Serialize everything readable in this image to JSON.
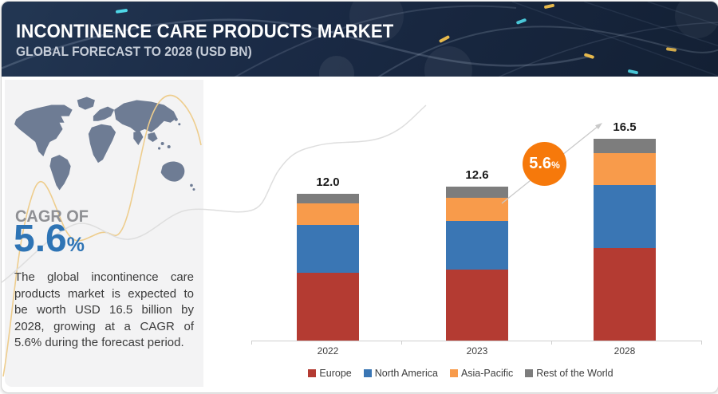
{
  "header": {
    "title": "INCONTINENCE CARE PRODUCTS MARKET",
    "subtitle": "GLOBAL FORECAST TO 2028 (USD BN)"
  },
  "left_panel": {
    "cagr_label": "CAGR OF",
    "cagr_value": "5.6",
    "cagr_unit": "%",
    "description": "The global incontinence care products market is expected to be worth USD 16.5 billion by 2028, growing at a CAGR of 5.6% during the forecast period."
  },
  "annotation_badge": {
    "value": "5.6",
    "unit": "%"
  },
  "chart_data": {
    "type": "bar",
    "stacked": true,
    "categories": [
      "2022",
      "2023",
      "2028"
    ],
    "series": [
      {
        "name": "Europe",
        "color": "#b43b32",
        "values": [
          5.55,
          5.8,
          7.55
        ]
      },
      {
        "name": "North America",
        "color": "#3a76b4",
        "values": [
          3.9,
          4.0,
          5.15
        ]
      },
      {
        "name": "Asia-Pacific",
        "color": "#f89b4b",
        "values": [
          1.75,
          1.9,
          2.6
        ]
      },
      {
        "name": "Rest of the World",
        "color": "#7d7d7d",
        "values": [
          0.8,
          0.9,
          1.2
        ]
      }
    ],
    "totals": [
      12.0,
      12.6,
      16.5
    ],
    "total_labels": [
      "12.0",
      "12.6",
      "16.5"
    ],
    "growth_annotation": "5.6%",
    "unit": "USD BN",
    "legend_position": "bottom",
    "ylim": [
      0,
      18
    ],
    "grid": false
  },
  "colors": {
    "header_bg": "#1a2a45",
    "panel_bg": "#f3f3f4",
    "map": "#6e7c94",
    "cagr_blue": "#2e74b5",
    "badge_orange": "#f6790b",
    "axis": "#cfcfcf",
    "wave_yellow": "#eecd8d",
    "wave_gray": "#dedede",
    "arrow_gray": "#c9c9c9"
  }
}
